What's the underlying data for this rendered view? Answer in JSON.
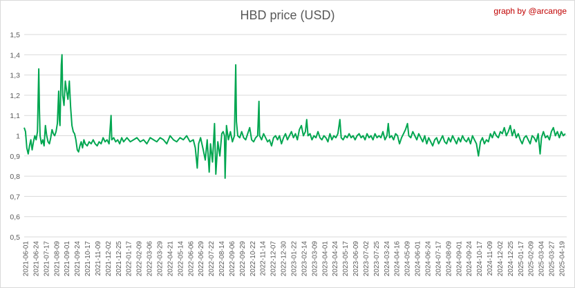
{
  "chart_data": {
    "type": "line",
    "title": "HBD price (USD)",
    "credit": "graph by @arcange",
    "xlabel": "",
    "ylabel": "",
    "ylim": [
      0.5,
      1.5
    ],
    "yticks": [
      "0,5",
      "0,6",
      "0,7",
      "0,8",
      "0,9",
      "1",
      "1,1",
      "1,2",
      "1,3",
      "1,4",
      "1,5"
    ],
    "grid": "horizontal",
    "legend": "none",
    "line_color": "#00a650",
    "x_start": "2021-06-01",
    "x_end": "2025-04-30",
    "xticks": [
      "2021-06-01",
      "2021-06-24",
      "2021-07-17",
      "2021-08-09",
      "2021-09-01",
      "2021-09-24",
      "2021-10-17",
      "2021-11-09",
      "2021-12-02",
      "2021-12-25",
      "2022-01-17",
      "2022-02-09",
      "2022-03-06",
      "2022-03-29",
      "2022-04-21",
      "2022-05-14",
      "2022-06-06",
      "2022-06-29",
      "2022-07-22",
      "2022-08-14",
      "2022-09-06",
      "2022-09-29",
      "2022-10-22",
      "2022-11-14",
      "2022-12-07",
      "2022-12-30",
      "2023-01-22",
      "2023-02-14",
      "2023-03-09",
      "2023-04-01",
      "2023-04-24",
      "2023-05-17",
      "2023-06-09",
      "2023-07-02",
      "2023-07-25",
      "2024-03-24",
      "2024-04-16",
      "2024-05-09",
      "2024-06-01",
      "2024-06-24",
      "2024-07-17",
      "2024-08-09",
      "2024-09-01",
      "2024-09-24",
      "2024-10-17",
      "2024-11-09",
      "2024-12-02",
      "2024-12-25",
      "2025-01-17",
      "2025-02-09",
      "2025-03-04",
      "2025-03-27",
      "2025-04-19"
    ],
    "series": [
      {
        "values": [
          [
            0,
            1.04
          ],
          [
            2,
            1.02
          ],
          [
            4,
            0.94
          ],
          [
            6,
            0.91
          ],
          [
            8,
            0.95
          ],
          [
            10,
            0.98
          ],
          [
            12,
            0.93
          ],
          [
            14,
            0.97
          ],
          [
            16,
            1.0
          ],
          [
            18,
            0.98
          ],
          [
            20,
            1.02
          ],
          [
            22,
            1.33
          ],
          [
            23,
            1.12
          ],
          [
            24,
            1.0
          ],
          [
            26,
            0.96
          ],
          [
            28,
            0.98
          ],
          [
            30,
            0.95
          ],
          [
            32,
            1.05
          ],
          [
            34,
            1.0
          ],
          [
            36,
            0.97
          ],
          [
            38,
            0.96
          ],
          [
            40,
            0.99
          ],
          [
            42,
            1.03
          ],
          [
            44,
            1.01
          ],
          [
            46,
            1.0
          ],
          [
            48,
            1.02
          ],
          [
            50,
            1.06
          ],
          [
            52,
            1.22
          ],
          [
            53,
            1.08
          ],
          [
            54,
            1.05
          ],
          [
            56,
            1.35
          ],
          [
            57,
            1.4
          ],
          [
            58,
            1.2
          ],
          [
            60,
            1.15
          ],
          [
            62,
            1.27
          ],
          [
            64,
            1.22
          ],
          [
            66,
            1.18
          ],
          [
            68,
            1.27
          ],
          [
            70,
            1.14
          ],
          [
            72,
            1.05
          ],
          [
            74,
            1.02
          ],
          [
            76,
            1.01
          ],
          [
            78,
            0.98
          ],
          [
            80,
            0.93
          ],
          [
            82,
            0.92
          ],
          [
            84,
            0.95
          ],
          [
            86,
            0.97
          ],
          [
            88,
            0.94
          ],
          [
            90,
            0.98
          ],
          [
            92,
            0.96
          ],
          [
            95,
            0.95
          ],
          [
            98,
            0.97
          ],
          [
            101,
            0.96
          ],
          [
            104,
            0.98
          ],
          [
            107,
            0.96
          ],
          [
            110,
            0.95
          ],
          [
            113,
            0.97
          ],
          [
            116,
            0.96
          ],
          [
            119,
            0.99
          ],
          [
            122,
            0.97
          ],
          [
            125,
            0.98
          ],
          [
            128,
            0.96
          ],
          [
            131,
            1.1
          ],
          [
            132,
            0.98
          ],
          [
            135,
            0.99
          ],
          [
            138,
            0.97
          ],
          [
            141,
            0.98
          ],
          [
            144,
            0.96
          ],
          [
            147,
            0.99
          ],
          [
            150,
            0.97
          ],
          [
            155,
            0.99
          ],
          [
            160,
            0.97
          ],
          [
            165,
            0.98
          ],
          [
            170,
            0.99
          ],
          [
            175,
            0.97
          ],
          [
            180,
            0.98
          ],
          [
            185,
            0.96
          ],
          [
            190,
            0.99
          ],
          [
            195,
            0.98
          ],
          [
            200,
            0.97
          ],
          [
            205,
            0.99
          ],
          [
            210,
            0.98
          ],
          [
            215,
            0.96
          ],
          [
            220,
            1.0
          ],
          [
            225,
            0.98
          ],
          [
            230,
            0.97
          ],
          [
            235,
            0.99
          ],
          [
            240,
            0.98
          ],
          [
            245,
            1.0
          ],
          [
            250,
            0.97
          ],
          [
            255,
            0.98
          ],
          [
            258,
            0.94
          ],
          [
            261,
            0.84
          ],
          [
            263,
            0.96
          ],
          [
            266,
            0.99
          ],
          [
            270,
            0.93
          ],
          [
            273,
            0.88
          ],
          [
            276,
            0.98
          ],
          [
            279,
            0.82
          ],
          [
            281,
            0.96
          ],
          [
            284,
            0.87
          ],
          [
            287,
            1.06
          ],
          [
            289,
            0.81
          ],
          [
            292,
            0.97
          ],
          [
            295,
            0.9
          ],
          [
            298,
            1.01
          ],
          [
            300,
            1.02
          ],
          [
            302,
            1.0
          ],
          [
            303,
            0.79
          ],
          [
            305,
            1.05
          ],
          [
            308,
            0.98
          ],
          [
            311,
            1.02
          ],
          [
            314,
            0.97
          ],
          [
            317,
            1.0
          ],
          [
            319,
            1.35
          ],
          [
            320,
            1.07
          ],
          [
            322,
            1.0
          ],
          [
            325,
            0.99
          ],
          [
            328,
            1.02
          ],
          [
            331,
            0.99
          ],
          [
            334,
            0.98
          ],
          [
            337,
            1.01
          ],
          [
            340,
            1.04
          ],
          [
            343,
            0.98
          ],
          [
            346,
            0.97
          ],
          [
            349,
            0.99
          ],
          [
            352,
            1.0
          ],
          [
            354,
            1.17
          ],
          [
            355,
            1.0
          ],
          [
            358,
            0.98
          ],
          [
            361,
            1.01
          ],
          [
            364,
            0.99
          ],
          [
            367,
            0.97
          ],
          [
            370,
            0.98
          ],
          [
            373,
            0.95
          ],
          [
            376,
            0.99
          ],
          [
            379,
            1.0
          ],
          [
            382,
            0.98
          ],
          [
            385,
            1.0
          ],
          [
            388,
            0.96
          ],
          [
            391,
            0.99
          ],
          [
            394,
            1.01
          ],
          [
            397,
            0.98
          ],
          [
            400,
            1.0
          ],
          [
            403,
            1.02
          ],
          [
            406,
            0.99
          ],
          [
            409,
            1.01
          ],
          [
            412,
            0.98
          ],
          [
            415,
            1.03
          ],
          [
            418,
            1.05
          ],
          [
            421,
            1.0
          ],
          [
            424,
            1.02
          ],
          [
            426,
            1.08
          ],
          [
            428,
            1.0
          ],
          [
            431,
            1.01
          ],
          [
            434,
            0.98
          ],
          [
            437,
            1.0
          ],
          [
            440,
            0.99
          ],
          [
            443,
            1.02
          ],
          [
            446,
            0.99
          ],
          [
            449,
            0.98
          ],
          [
            452,
            1.0
          ],
          [
            455,
            0.99
          ],
          [
            458,
            0.97
          ],
          [
            461,
            1.01
          ],
          [
            464,
            0.98
          ],
          [
            467,
            1.0
          ],
          [
            470,
            0.99
          ],
          [
            473,
            1.01
          ],
          [
            476,
            1.08
          ],
          [
            478,
            0.99
          ],
          [
            481,
            0.98
          ],
          [
            484,
            1.0
          ],
          [
            487,
            0.99
          ],
          [
            490,
            1.01
          ],
          [
            493,
            0.99
          ],
          [
            496,
            1.0
          ],
          [
            499,
            0.98
          ],
          [
            502,
            1.0
          ],
          [
            505,
            1.01
          ],
          [
            508,
            0.99
          ],
          [
            511,
            1.0
          ],
          [
            514,
            0.98
          ],
          [
            517,
            1.01
          ],
          [
            520,
            0.99
          ],
          [
            523,
            1.0
          ],
          [
            526,
            0.98
          ],
          [
            529,
            1.01
          ],
          [
            532,
            0.99
          ],
          [
            535,
            1.0
          ],
          [
            538,
            0.99
          ],
          [
            541,
            1.02
          ],
          [
            544,
            0.98
          ],
          [
            547,
            1.0
          ],
          [
            549,
            1.06
          ],
          [
            551,
            0.99
          ],
          [
            554,
            1.0
          ],
          [
            557,
            0.98
          ],
          [
            560,
            1.01
          ],
          [
            563,
            1.0
          ],
          [
            566,
            0.96
          ],
          [
            569,
            0.99
          ],
          [
            572,
            1.01
          ],
          [
            575,
            1.03
          ],
          [
            578,
            1.06
          ],
          [
            580,
            1.0
          ],
          [
            583,
            0.99
          ],
          [
            586,
            1.02
          ],
          [
            589,
            1.0
          ],
          [
            592,
            0.98
          ],
          [
            595,
            1.01
          ],
          [
            598,
            0.99
          ],
          [
            601,
            0.97
          ],
          [
            604,
            1.0
          ],
          [
            607,
            0.96
          ],
          [
            610,
            0.99
          ],
          [
            613,
            0.97
          ],
          [
            616,
            0.95
          ],
          [
            619,
            0.98
          ],
          [
            622,
            0.99
          ],
          [
            625,
            0.96
          ],
          [
            628,
            0.98
          ],
          [
            631,
            1.0
          ],
          [
            634,
            0.97
          ],
          [
            637,
            0.96
          ],
          [
            640,
            0.99
          ],
          [
            643,
            0.97
          ],
          [
            646,
            1.0
          ],
          [
            649,
            0.98
          ],
          [
            652,
            0.96
          ],
          [
            655,
            0.99
          ],
          [
            658,
            0.97
          ],
          [
            661,
            1.0
          ],
          [
            664,
            0.98
          ],
          [
            667,
            0.97
          ],
          [
            670,
            0.99
          ],
          [
            673,
            0.96
          ],
          [
            676,
            1.0
          ],
          [
            679,
            0.98
          ],
          [
            682,
            0.96
          ],
          [
            685,
            0.9
          ],
          [
            688,
            0.97
          ],
          [
            691,
            0.99
          ],
          [
            694,
            0.96
          ],
          [
            697,
            0.98
          ],
          [
            700,
            0.97
          ],
          [
            703,
            1.01
          ],
          [
            706,
            0.99
          ],
          [
            709,
            1.02
          ],
          [
            712,
            1.0
          ],
          [
            715,
            0.99
          ],
          [
            718,
            1.02
          ],
          [
            721,
            1.01
          ],
          [
            724,
            1.04
          ],
          [
            727,
            1.0
          ],
          [
            730,
            1.02
          ],
          [
            733,
            1.05
          ],
          [
            736,
            1.0
          ],
          [
            739,
            1.03
          ],
          [
            742,
            0.99
          ],
          [
            745,
            1.01
          ],
          [
            748,
            0.98
          ],
          [
            751,
            0.96
          ],
          [
            754,
            0.99
          ],
          [
            757,
            1.0
          ],
          [
            760,
            0.98
          ],
          [
            763,
            0.96
          ],
          [
            766,
            1.0
          ],
          [
            769,
            0.99
          ],
          [
            772,
            0.97
          ],
          [
            775,
            1.01
          ],
          [
            778,
            0.91
          ],
          [
            780,
            0.99
          ],
          [
            783,
            1.02
          ],
          [
            786,
            0.99
          ],
          [
            789,
            1.0
          ],
          [
            792,
            0.98
          ],
          [
            795,
            1.02
          ],
          [
            798,
            1.04
          ],
          [
            801,
            1.0
          ],
          [
            804,
            1.02
          ],
          [
            807,
            0.99
          ],
          [
            810,
            1.02
          ],
          [
            813,
            1.0
          ],
          [
            816,
            1.01
          ]
        ]
      }
    ]
  }
}
